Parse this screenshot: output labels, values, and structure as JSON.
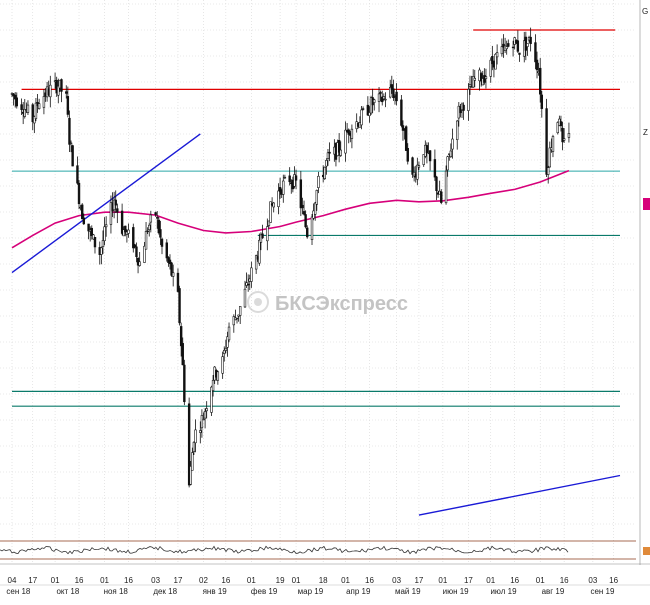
{
  "watermark": {
    "text": "БКСЭкспресс"
  },
  "right_axis_glimpse": [
    "G",
    "Z"
  ],
  "colors": {
    "background": "#ffffff",
    "grid": "#d6d6d6",
    "candle": "#111111",
    "moving_average": "#d6007a",
    "resistance": "#e00000",
    "trendline": "#1a1ad6",
    "support_cyan": "#2aa6a6",
    "support_teal": "#0a7a6a",
    "oscillator": "#333333",
    "oscillator_bounds": "#8a3a1a",
    "marker": "#d6007a"
  },
  "chart_data": {
    "type": "candlestick",
    "title": "",
    "xlabel": "",
    "ylabel": "",
    "x_range": [
      "2018-09-04",
      "2019-09-20"
    ],
    "y_range": [
      0,
      100
    ],
    "grid": true,
    "x_ticks": [
      {
        "date": "2018-09-04",
        "label": "04"
      },
      {
        "date": "2018-09-17",
        "label": "17"
      },
      {
        "date": "2018-10-01",
        "label": "01"
      },
      {
        "date": "2018-10-16",
        "label": "16"
      },
      {
        "date": "2018-11-01",
        "label": "01"
      },
      {
        "date": "2018-11-16",
        "label": "16"
      },
      {
        "date": "2018-12-03",
        "label": "03"
      },
      {
        "date": "2018-12-17",
        "label": "17"
      },
      {
        "date": "2019-01-02",
        "label": "02"
      },
      {
        "date": "2019-01-16",
        "label": "16"
      },
      {
        "date": "2019-02-01",
        "label": "01"
      },
      {
        "date": "2019-02-19",
        "label": "19"
      },
      {
        "date": "2019-03-01",
        "label": "01"
      },
      {
        "date": "2019-03-18",
        "label": "18"
      },
      {
        "date": "2019-04-01",
        "label": "01"
      },
      {
        "date": "2019-04-16",
        "label": "16"
      },
      {
        "date": "2019-05-03",
        "label": "03"
      },
      {
        "date": "2019-05-17",
        "label": "17"
      },
      {
        "date": "2019-06-01",
        "label": "01"
      },
      {
        "date": "2019-06-17",
        "label": "17"
      },
      {
        "date": "2019-07-01",
        "label": "01"
      },
      {
        "date": "2019-07-16",
        "label": "16"
      },
      {
        "date": "2019-08-01",
        "label": "01"
      },
      {
        "date": "2019-08-16",
        "label": "16"
      },
      {
        "date": "2019-09-03",
        "label": "03"
      },
      {
        "date": "2019-09-16",
        "label": "16"
      }
    ],
    "month_labels": [
      {
        "date": "2018-09-08",
        "label": "сен 18"
      },
      {
        "date": "2018-10-09",
        "label": "окт 18"
      },
      {
        "date": "2018-11-08",
        "label": "ноя 18"
      },
      {
        "date": "2018-12-09",
        "label": "дек 18"
      },
      {
        "date": "2019-01-09",
        "label": "янв 19"
      },
      {
        "date": "2019-02-09",
        "label": "фев 19"
      },
      {
        "date": "2019-03-10",
        "label": "мар 19"
      },
      {
        "date": "2019-04-09",
        "label": "апр 19"
      },
      {
        "date": "2019-05-10",
        "label": "май 19"
      },
      {
        "date": "2019-06-09",
        "label": "июн 19"
      },
      {
        "date": "2019-07-09",
        "label": "июл 19"
      },
      {
        "date": "2019-08-09",
        "label": "авг 19"
      },
      {
        "date": "2019-09-09",
        "label": "сен 19"
      }
    ],
    "price_path": [
      [
        "2018-09-04",
        87
      ],
      [
        "2018-09-10",
        85
      ],
      [
        "2018-09-17",
        82
      ],
      [
        "2018-09-21",
        86
      ],
      [
        "2018-09-28",
        88
      ],
      [
        "2018-10-03",
        89
      ],
      [
        "2018-10-08",
        86
      ],
      [
        "2018-10-10",
        78
      ],
      [
        "2018-10-15",
        68
      ],
      [
        "2018-10-18",
        63
      ],
      [
        "2018-10-24",
        58
      ],
      [
        "2018-10-29",
        55
      ],
      [
        "2018-11-02",
        60
      ],
      [
        "2018-11-07",
        66
      ],
      [
        "2018-11-12",
        60
      ],
      [
        "2018-11-19",
        57
      ],
      [
        "2018-11-23",
        53
      ],
      [
        "2018-11-28",
        60
      ],
      [
        "2018-12-03",
        63
      ],
      [
        "2018-12-07",
        56
      ],
      [
        "2018-12-12",
        52
      ],
      [
        "2018-12-17",
        46
      ],
      [
        "2018-12-20",
        32
      ],
      [
        "2018-12-24",
        8
      ],
      [
        "2018-12-27",
        18
      ],
      [
        "2019-01-02",
        22
      ],
      [
        "2019-01-08",
        30
      ],
      [
        "2019-01-14",
        33
      ],
      [
        "2019-01-18",
        40
      ],
      [
        "2019-01-24",
        43
      ],
      [
        "2019-01-31",
        50
      ],
      [
        "2019-02-06",
        56
      ],
      [
        "2019-02-12",
        63
      ],
      [
        "2019-02-19",
        68
      ],
      [
        "2019-02-25",
        70
      ],
      [
        "2019-03-01",
        69
      ],
      [
        "2019-03-08",
        59
      ],
      [
        "2019-03-15",
        69
      ],
      [
        "2019-03-21",
        74
      ],
      [
        "2019-03-28",
        76
      ],
      [
        "2019-04-03",
        80
      ],
      [
        "2019-04-10",
        82
      ],
      [
        "2019-04-17",
        85
      ],
      [
        "2019-04-24",
        86
      ],
      [
        "2019-04-30",
        88
      ],
      [
        "2019-05-03",
        86
      ],
      [
        "2019-05-07",
        80
      ],
      [
        "2019-05-13",
        70
      ],
      [
        "2019-05-20",
        76
      ],
      [
        "2019-05-24",
        73
      ],
      [
        "2019-05-31",
        65
      ],
      [
        "2019-06-04",
        73
      ],
      [
        "2019-06-10",
        83
      ],
      [
        "2019-06-17",
        87
      ],
      [
        "2019-06-21",
        90
      ],
      [
        "2019-06-28",
        91
      ],
      [
        "2019-07-03",
        94
      ],
      [
        "2019-07-10",
        96
      ],
      [
        "2019-07-15",
        98
      ],
      [
        "2019-07-19",
        96
      ],
      [
        "2019-07-26",
        98
      ],
      [
        "2019-07-31",
        92
      ],
      [
        "2019-08-05",
        72
      ],
      [
        "2019-08-09",
        79
      ],
      [
        "2019-08-13",
        83
      ],
      [
        "2019-08-15",
        76
      ],
      [
        "2019-08-19",
        80
      ]
    ],
    "moving_average": [
      [
        "2018-09-04",
        56
      ],
      [
        "2018-09-17",
        58.5
      ],
      [
        "2018-10-01",
        61
      ],
      [
        "2018-10-16",
        62.5
      ],
      [
        "2018-11-01",
        63.2
      ],
      [
        "2018-11-16",
        63.2
      ],
      [
        "2018-12-03",
        62.6
      ],
      [
        "2018-12-17",
        61
      ],
      [
        "2019-01-02",
        59.5
      ],
      [
        "2019-01-16",
        59
      ],
      [
        "2019-02-01",
        59.3
      ],
      [
        "2019-02-19",
        60.3
      ],
      [
        "2019-03-01",
        61.2
      ],
      [
        "2019-03-18",
        62.5
      ],
      [
        "2019-04-01",
        63.8
      ],
      [
        "2019-04-16",
        65
      ],
      [
        "2019-05-03",
        65.6
      ],
      [
        "2019-05-17",
        65.3
      ],
      [
        "2019-06-01",
        65.5
      ],
      [
        "2019-06-17",
        66.2
      ],
      [
        "2019-07-01",
        67
      ],
      [
        "2019-07-16",
        67.8
      ],
      [
        "2019-08-01",
        69.3
      ],
      [
        "2019-08-19",
        71.6
      ]
    ],
    "lines": {
      "resistance_upper": {
        "start": "2019-06-20",
        "end": "2019-09-17",
        "value": 100
      },
      "resistance_main": {
        "start": "2018-09-10",
        "end": "2019-09-20",
        "value": 88
      },
      "support_cyan": {
        "start": "2018-09-04",
        "end": "2019-09-20",
        "value": 71.5
      },
      "support_teal_short": {
        "start": "2019-02-05",
        "end": "2019-09-20",
        "value": 58.5
      },
      "support_low_1": {
        "start": "2018-09-04",
        "end": "2019-09-20",
        "value": 27
      },
      "support_low_2": {
        "start": "2018-09-04",
        "end": "2019-09-20",
        "value": 24
      },
      "trend_up_1": {
        "start": [
          "2018-09-04",
          51
        ],
        "end": [
          "2018-12-31",
          79
        ]
      },
      "trend_up_2": {
        "start": [
          "2019-05-17",
          2
        ],
        "end": [
          "2019-09-20",
          10
        ]
      }
    },
    "oscillator": {
      "upper_bound": 80,
      "lower_bound": 20,
      "last_value": 45
    }
  }
}
